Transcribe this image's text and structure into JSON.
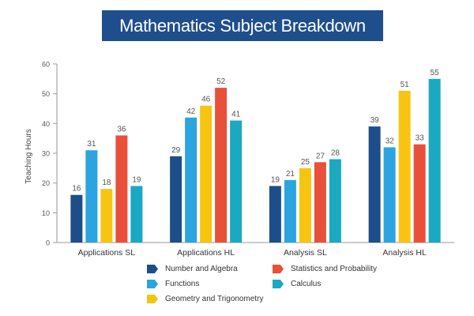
{
  "title": "Mathematics Subject Breakdown",
  "chart_data": {
    "type": "bar",
    "title": "Mathematics Subject Breakdown",
    "xlabel": "",
    "ylabel": "Teaching Hours",
    "ylim": [
      0,
      60
    ],
    "yticks": [
      0,
      10,
      20,
      30,
      40,
      50,
      60
    ],
    "grid": false,
    "legend_position": "bottom",
    "categories": [
      "Applications SL",
      "Applications HL",
      "Analysis SL",
      "Analysis HL"
    ],
    "series": [
      {
        "name": "Number and Algebra",
        "color": "#1d4e89",
        "values": [
          16,
          29,
          19,
          39
        ]
      },
      {
        "name": "Functions",
        "color": "#2ba4e0",
        "values": [
          31,
          42,
          21,
          32
        ]
      },
      {
        "name": "Geometry and Trigonometry",
        "color": "#f7c511",
        "values": [
          18,
          46,
          25,
          51
        ]
      },
      {
        "name": "Statistics and Probability",
        "color": "#e8503a",
        "values": [
          36,
          52,
          27,
          33
        ]
      },
      {
        "name": "Calculus",
        "color": "#1aa9c0",
        "values": [
          19,
          41,
          28,
          55
        ]
      }
    ]
  }
}
